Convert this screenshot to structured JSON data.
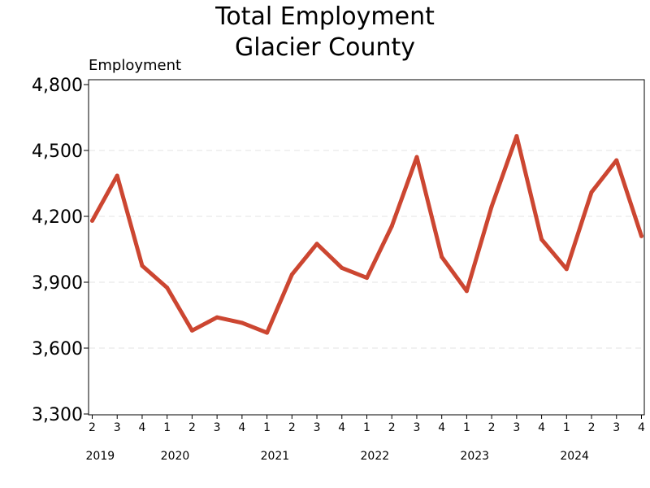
{
  "chart_data": {
    "type": "line",
    "title": [
      "Total Employment",
      "Glacier County"
    ],
    "ylabel": "Employment",
    "xlabel": "",
    "ylim": [
      3300,
      4800
    ],
    "yticks": [
      3300,
      3600,
      3900,
      4200,
      4500,
      4800
    ],
    "ytick_labels": [
      "3,300",
      "3,600",
      "3,900",
      "4,200",
      "4,500",
      "4,800"
    ],
    "grid": "horizontal dashed",
    "x": [
      "2019 Q2",
      "2019 Q3",
      "2019 Q4",
      "2020 Q1",
      "2020 Q2",
      "2020 Q3",
      "2020 Q4",
      "2021 Q1",
      "2021 Q2",
      "2021 Q3",
      "2021 Q4",
      "2022 Q1",
      "2022 Q2",
      "2022 Q3",
      "2022 Q4",
      "2023 Q1",
      "2023 Q2",
      "2023 Q3",
      "2023 Q4",
      "2024 Q1",
      "2024 Q2",
      "2024 Q3",
      "2024 Q4"
    ],
    "quarter_labels": [
      "2",
      "3",
      "4",
      "1",
      "2",
      "3",
      "4",
      "1",
      "2",
      "3",
      "4",
      "1",
      "2",
      "3",
      "4",
      "1",
      "2",
      "3",
      "4",
      "1",
      "2",
      "3",
      "4"
    ],
    "year_labels": [
      {
        "label": "2019",
        "index": 0
      },
      {
        "label": "2020",
        "index": 3
      },
      {
        "label": "2021",
        "index": 7
      },
      {
        "label": "2022",
        "index": 11
      },
      {
        "label": "2023",
        "index": 15
      },
      {
        "label": "2024",
        "index": 19
      }
    ],
    "series": [
      {
        "values": [
          4180,
          4385,
          3975,
          3875,
          3680,
          3740,
          3715,
          3670,
          3935,
          4075,
          3965,
          3920,
          4155,
          4470,
          4015,
          3860,
          4245,
          4565,
          4095,
          3960,
          4310,
          4455,
          4110
        ],
        "color": "#cc4631"
      }
    ],
    "colors": {
      "line": "#cc4631",
      "grid": "#e3e3e3",
      "axis": "#000000"
    }
  }
}
